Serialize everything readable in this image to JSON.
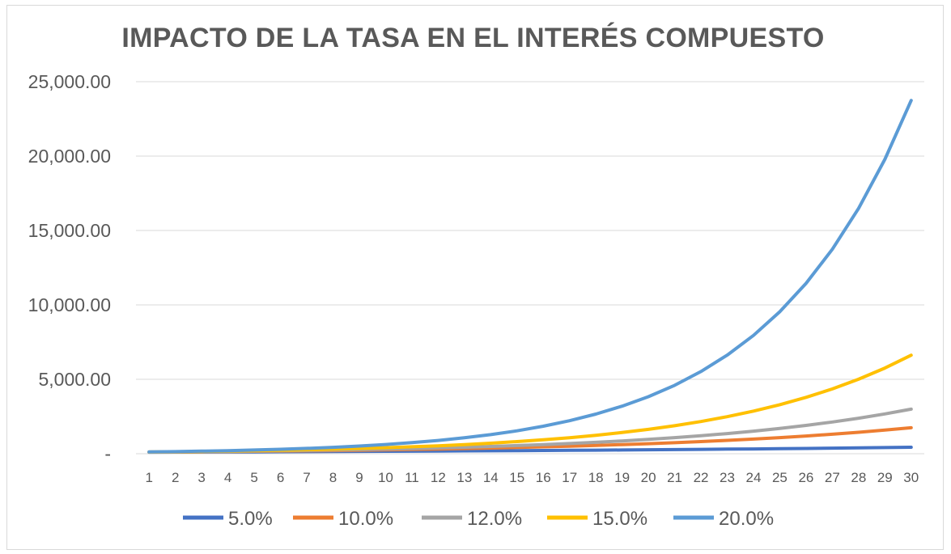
{
  "chart_data": {
    "type": "line",
    "title": "IMPACTO DE LA TASA EN EL INTERÉS COMPUESTO",
    "xlabel": "",
    "ylabel": "",
    "x": [
      1,
      2,
      3,
      4,
      5,
      6,
      7,
      8,
      9,
      10,
      11,
      12,
      13,
      14,
      15,
      16,
      17,
      18,
      19,
      20,
      21,
      22,
      23,
      24,
      25,
      26,
      27,
      28,
      29,
      30
    ],
    "ylim": [
      0,
      25000
    ],
    "y_ticks": [
      0,
      5000,
      10000,
      15000,
      20000,
      25000
    ],
    "y_tick_labels": [
      "-",
      "5,000.00",
      "10,000.00",
      "15,000.00",
      "20,000.00",
      "25,000.00"
    ],
    "grid": "horizontal",
    "legend_position": "bottom",
    "series": [
      {
        "name": "5.0%",
        "color": "#4472C4",
        "values": [
          105.0,
          110.25,
          115.76,
          121.55,
          127.63,
          134.01,
          140.71,
          147.75,
          155.13,
          162.89,
          171.03,
          179.59,
          188.56,
          197.99,
          207.89,
          218.29,
          229.2,
          240.66,
          252.7,
          265.33,
          278.6,
          292.53,
          307.15,
          322.51,
          338.64,
          355.57,
          373.35,
          392.01,
          411.61,
          432.19
        ]
      },
      {
        "name": "10.0%",
        "color": "#ED7D31",
        "values": [
          110.0,
          121.0,
          133.1,
          146.41,
          161.05,
          177.16,
          194.87,
          214.36,
          235.79,
          259.37,
          285.31,
          313.84,
          345.23,
          379.75,
          417.72,
          459.5,
          505.45,
          555.99,
          611.59,
          672.75,
          740.02,
          814.03,
          895.43,
          984.97,
          1083.47,
          1191.82,
          1311.0,
          1442.1,
          1586.31,
          1744.94
        ]
      },
      {
        "name": "12.0%",
        "color": "#A5A5A5",
        "values": [
          112.0,
          125.44,
          140.49,
          157.35,
          176.23,
          197.38,
          221.07,
          247.6,
          277.31,
          310.58,
          347.85,
          389.6,
          436.35,
          488.71,
          547.36,
          613.04,
          686.6,
          769.0,
          861.28,
          964.63,
          1080.39,
          1210.04,
          1355.24,
          1517.87,
          1700.01,
          1904.02,
          2132.5,
          2388.4,
          2675.01,
          2995.99
        ]
      },
      {
        "name": "15.0%",
        "color": "#FFC000",
        "values": [
          115.0,
          132.25,
          152.09,
          174.9,
          201.14,
          231.31,
          266.0,
          305.9,
          351.79,
          404.56,
          465.24,
          535.03,
          615.27,
          707.57,
          813.71,
          935.76,
          1076.13,
          1237.55,
          1423.18,
          1636.65,
          1882.15,
          2164.48,
          2489.15,
          2862.52,
          3291.9,
          3785.68,
          4353.54,
          5006.57,
          5757.56,
          6621.18
        ]
      },
      {
        "name": "20.0%",
        "color": "#5B9BD5",
        "values": [
          120.0,
          144.0,
          172.8,
          207.36,
          248.83,
          298.6,
          358.32,
          429.98,
          515.98,
          619.17,
          743.01,
          891.61,
          1069.93,
          1283.92,
          1540.7,
          1848.84,
          2218.61,
          2662.33,
          3194.8,
          3833.76,
          4600.51,
          5520.61,
          6624.74,
          7949.68,
          9539.62,
          11447.54,
          13737.05,
          16484.46,
          19781.35,
          23737.63
        ]
      }
    ]
  }
}
